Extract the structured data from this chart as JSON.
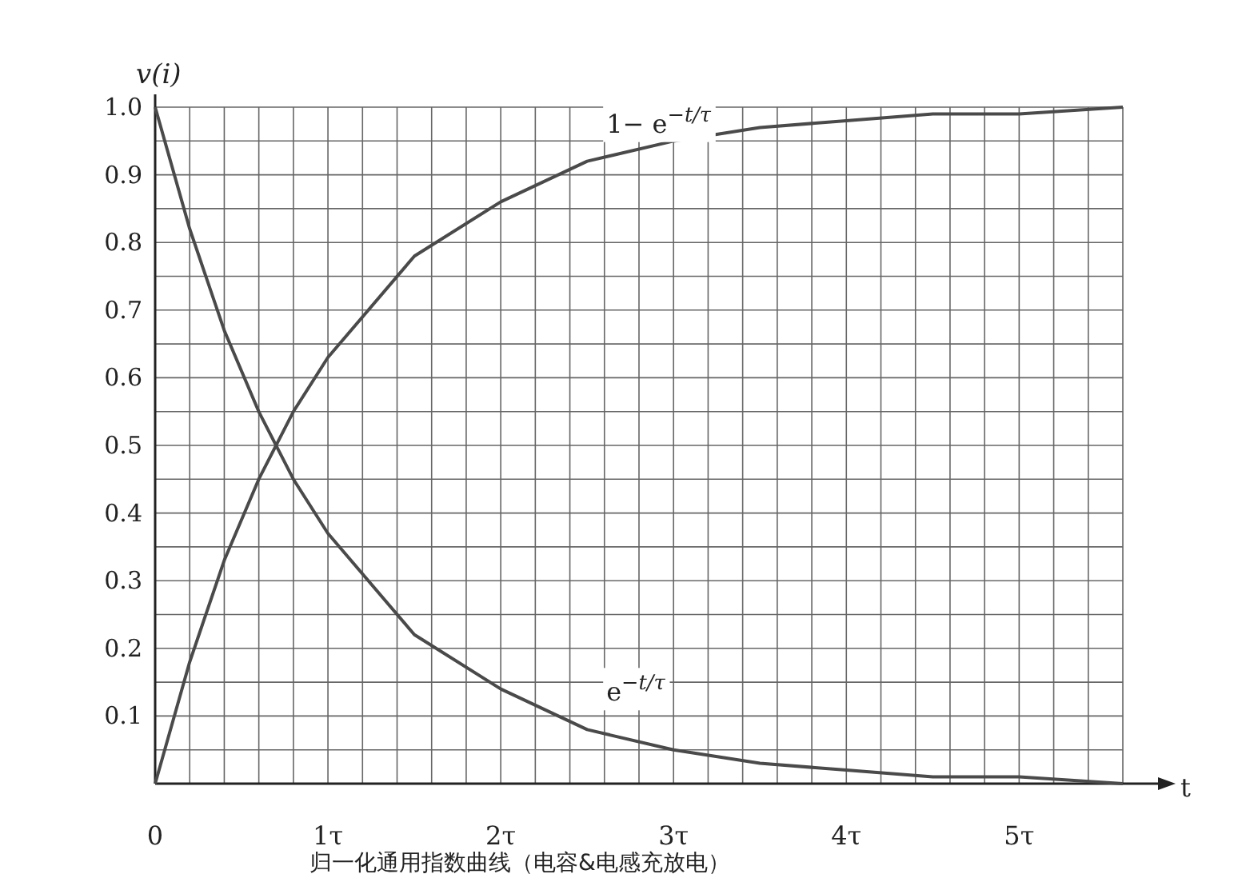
{
  "chart_data": {
    "type": "line",
    "title": "归一化通用指数曲线（电容&电感充放电）",
    "xlabel": "t",
    "ylabel": "v(i)",
    "x": [
      0,
      0.2,
      0.4,
      0.6,
      0.8,
      1,
      1.5,
      2,
      2.5,
      3,
      3.5,
      4,
      4.5,
      5,
      5.6
    ],
    "series": [
      {
        "color": "#4a4a4a",
        "values": [
          0,
          0.18,
          0.33,
          0.45,
          0.55,
          0.63,
          0.78,
          0.86,
          0.92,
          0.95,
          0.97,
          0.98,
          0.99,
          0.99,
          1.0
        ]
      },
      {
        "color": "#4a4a4a",
        "values": [
          1,
          0.82,
          0.67,
          0.55,
          0.45,
          0.37,
          0.22,
          0.14,
          0.08,
          0.05,
          0.03,
          0.02,
          0.01,
          0.01,
          0.0
        ]
      }
    ],
    "xlim": [
      0,
      5.6
    ],
    "ylim": [
      0,
      1.0
    ],
    "xticks": [
      {
        "value": 0,
        "label": "0"
      },
      {
        "value": 1,
        "label": "1τ"
      },
      {
        "value": 2,
        "label": "2τ"
      },
      {
        "value": 3,
        "label": "3τ"
      },
      {
        "value": 4,
        "label": "4τ"
      },
      {
        "value": 5,
        "label": "5τ"
      }
    ],
    "yticks": [
      0.1,
      0.2,
      0.3,
      0.4,
      0.5,
      0.6,
      0.7,
      0.8,
      0.9,
      {
        "value": 1.0,
        "label": "1.0"
      }
    ],
    "grid": true,
    "annotations": [
      {
        "text": "1− e$^{−t/τ}$",
        "x": 2.5,
        "y": 0.92
      },
      {
        "text": "e$^{−t/τ}$",
        "x": 2.5,
        "y": 0.08
      }
    ]
  }
}
